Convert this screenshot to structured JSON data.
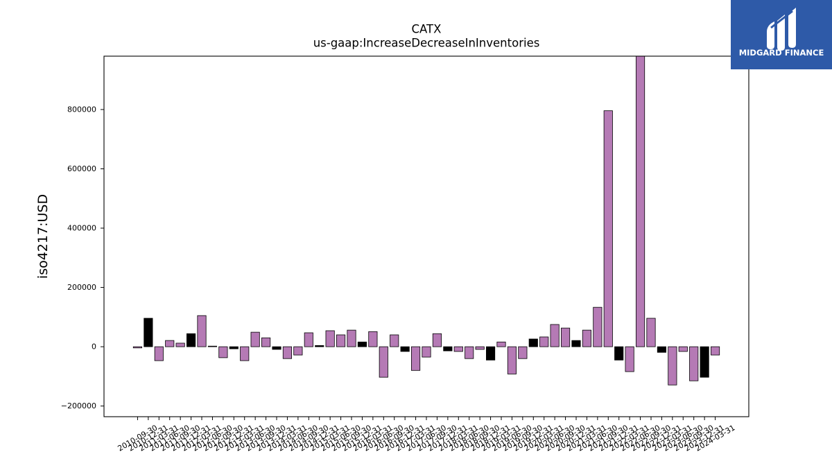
{
  "logo": {
    "text": "MIDGARD FINANCE",
    "background": "#2e5aa8",
    "foreground": "#ffffff",
    "mark_icon": "midgard-finance-logo-mark"
  },
  "chart_data": {
    "type": "bar",
    "title": "CATX",
    "subtitle": "us-gaap:IncreaseDecreaseInInventories",
    "xlabel": "",
    "ylabel": "iso4217:USD",
    "categories": [
      "2010-09-30",
      "2010-12-31",
      "2011-03-31",
      "2011-06-30",
      "2011-09-30",
      "2011-12-31",
      "2012-03-31",
      "2012-06-30",
      "2012-09-30",
      "2012-12-31",
      "2013-03-31",
      "2013-06-30",
      "2013-09-30",
      "2013-12-31",
      "2014-03-31",
      "2014-06-30",
      "2014-09-30",
      "2014-12-31",
      "2015-03-31",
      "2015-06-30",
      "2015-09-30",
      "2015-12-31",
      "2016-03-31",
      "2016-06-30",
      "2016-09-30",
      "2016-12-31",
      "2017-03-31",
      "2017-06-30",
      "2017-09-30",
      "2017-12-31",
      "2018-03-31",
      "2018-06-30",
      "2018-09-30",
      "2018-12-31",
      "2019-03-31",
      "2019-06-30",
      "2019-09-30",
      "2019-12-31",
      "2020-03-31",
      "2020-06-30",
      "2020-09-30",
      "2020-12-31",
      "2021-03-31",
      "2021-06-30",
      "2021-09-30",
      "2021-12-31",
      "2022-03-31",
      "2022-06-30",
      "2022-09-30",
      "2022-12-31",
      "2023-03-31",
      "2023-06-30",
      "2023-09-30",
      "2023-12-31",
      "2024-03-31"
    ],
    "values": [
      -4000,
      96000,
      -47000,
      21000,
      12000,
      44000,
      105000,
      2000,
      -37000,
      -7000,
      -47000,
      49000,
      30000,
      -9000,
      -40000,
      -28000,
      47000,
      4000,
      54000,
      40000,
      56000,
      16000,
      51000,
      -103000,
      40000,
      -16000,
      -80000,
      -35000,
      44000,
      -14000,
      -16000,
      -40000,
      -9000,
      -45000,
      16000,
      -92000,
      -40000,
      26000,
      33000,
      75000,
      63000,
      21000,
      56000,
      133000,
      796000,
      -45000,
      -84000,
      1000000,
      96000,
      -19000,
      -129000,
      -16000,
      -115000,
      -103000,
      -28000
    ],
    "bar_colors": [
      "#b57ab5",
      "#000000",
      "#b57ab5",
      "#b57ab5",
      "#b57ab5",
      "#000000",
      "#b57ab5",
      "#b57ab5",
      "#b57ab5",
      "#000000",
      "#b57ab5",
      "#b57ab5",
      "#b57ab5",
      "#000000",
      "#b57ab5",
      "#b57ab5",
      "#b57ab5",
      "#000000",
      "#b57ab5",
      "#b57ab5",
      "#b57ab5",
      "#000000",
      "#b57ab5",
      "#b57ab5",
      "#b57ab5",
      "#000000",
      "#b57ab5",
      "#b57ab5",
      "#b57ab5",
      "#000000",
      "#b57ab5",
      "#b57ab5",
      "#b57ab5",
      "#000000",
      "#b57ab5",
      "#b57ab5",
      "#b57ab5",
      "#000000",
      "#b57ab5",
      "#b57ab5",
      "#b57ab5",
      "#000000",
      "#b57ab5",
      "#b57ab5",
      "#b57ab5",
      "#000000",
      "#b57ab5",
      "#b57ab5",
      "#b57ab5",
      "#000000",
      "#b57ab5",
      "#b57ab5",
      "#b57ab5",
      "#000000",
      "#b57ab5"
    ],
    "edge_color": "#000000",
    "ylim": [
      -236000,
      980000
    ],
    "yticks": [
      -200000,
      0,
      200000,
      400000,
      600000,
      800000
    ],
    "ytick_labels": [
      "−200000",
      "0",
      "200000",
      "400000",
      "600000",
      "800000"
    ],
    "grid": false
  }
}
